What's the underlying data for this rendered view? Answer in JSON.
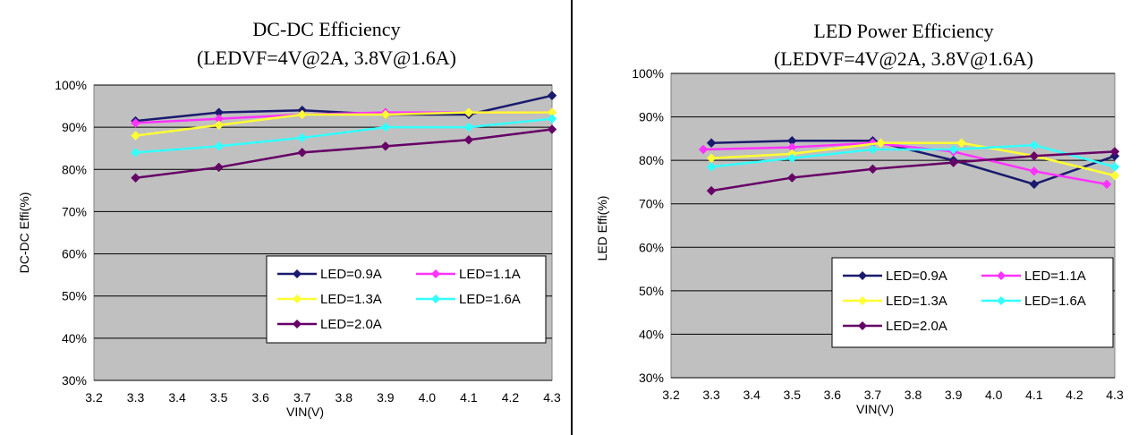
{
  "chart_data": [
    {
      "type": "line",
      "title": "DC-DC Efficiency",
      "subtitle": "(LEDVF=4V@2A, 3.8V@1.6A)",
      "xlabel": "VIN(V)",
      "ylabel": "DC-DC Effi(%)",
      "xlim": [
        3.2,
        4.3
      ],
      "ylim": [
        30,
        100
      ],
      "x_ticks": [
        "3.2",
        "3.3",
        "3.4",
        "3.5",
        "3.6",
        "3.7",
        "3.8",
        "3.9",
        "4.0",
        "4.1",
        "4.2",
        "4.3"
      ],
      "y_ticks": [
        "30%",
        "40%",
        "50%",
        "60%",
        "70%",
        "80%",
        "90%",
        "100%"
      ],
      "grid": true,
      "legend_position": "lower-right",
      "series": [
        {
          "name": "LED=0.9A",
          "color": "#1a1a6e",
          "x": [
            3.3,
            3.5,
            3.7,
            3.9,
            4.1,
            4.3
          ],
          "y": [
            91.5,
            93.5,
            94,
            93,
            93,
            97.5
          ]
        },
        {
          "name": "LED=1.1A",
          "color": "#ff33ff",
          "x": [
            3.3,
            3.5,
            3.7,
            3.9,
            4.1,
            4.3
          ],
          "y": [
            91,
            92,
            93,
            93.5,
            93.5,
            93.5
          ]
        },
        {
          "name": "LED=1.3A",
          "color": "#ffff33",
          "x": [
            3.3,
            3.5,
            3.7,
            3.9,
            4.1,
            4.3
          ],
          "y": [
            88,
            90.5,
            93,
            93,
            93.5,
            93.5
          ]
        },
        {
          "name": "LED=1.6A",
          "color": "#33ffff",
          "x": [
            3.3,
            3.5,
            3.7,
            3.9,
            4.1,
            4.3
          ],
          "y": [
            84,
            85.5,
            87.5,
            90,
            90,
            92
          ]
        },
        {
          "name": "LED=2.0A",
          "color": "#660066",
          "x": [
            3.3,
            3.5,
            3.7,
            3.9,
            4.1,
            4.3
          ],
          "y": [
            78,
            80.5,
            84,
            85.5,
            87,
            89.5
          ]
        }
      ]
    },
    {
      "type": "line",
      "title": "LED Power Efficiency",
      "subtitle": "(LEDVF=4V@2A, 3.8V@1.6A)",
      "xlabel": "VIN(V)",
      "ylabel": "LED Effi(%)",
      "xlim": [
        3.2,
        4.3
      ],
      "ylim": [
        30,
        100
      ],
      "x_ticks": [
        "3.2",
        "3.3",
        "3.4",
        "3.5",
        "3.6",
        "3.7",
        "3.8",
        "3.9",
        "4.0",
        "4.1",
        "4.2",
        "4.3"
      ],
      "y_ticks": [
        "30%",
        "40%",
        "50%",
        "60%",
        "70%",
        "80%",
        "90%",
        "100%"
      ],
      "grid": true,
      "legend_position": "lower-right",
      "series": [
        {
          "name": "LED=0.9A",
          "color": "#1a1a6e",
          "x": [
            3.3,
            3.5,
            3.7,
            3.9,
            4.1,
            4.3
          ],
          "y": [
            84,
            84.5,
            84.5,
            80,
            74.5,
            81
          ]
        },
        {
          "name": "LED=1.1A",
          "color": "#ff33ff",
          "x": [
            3.28,
            3.5,
            3.7,
            3.9,
            4.1,
            4.28
          ],
          "y": [
            82.5,
            83,
            84,
            82,
            77.5,
            74.5
          ]
        },
        {
          "name": "LED=1.3A",
          "color": "#ffff33",
          "x": [
            3.3,
            3.5,
            3.72,
            3.92,
            4.1,
            4.3
          ],
          "y": [
            80.5,
            81.5,
            84,
            84,
            81,
            76.5
          ]
        },
        {
          "name": "LED=1.6A",
          "color": "#33ffff",
          "x": [
            3.3,
            3.5,
            3.7,
            3.9,
            4.1,
            4.3
          ],
          "y": [
            78.5,
            80.5,
            82.5,
            82.5,
            83.5,
            78.5
          ]
        },
        {
          "name": "LED=2.0A",
          "color": "#660066",
          "x": [
            3.3,
            3.5,
            3.7,
            3.9,
            4.1,
            4.3
          ],
          "y": [
            73,
            76,
            78,
            79.5,
            81,
            82
          ]
        }
      ]
    }
  ]
}
